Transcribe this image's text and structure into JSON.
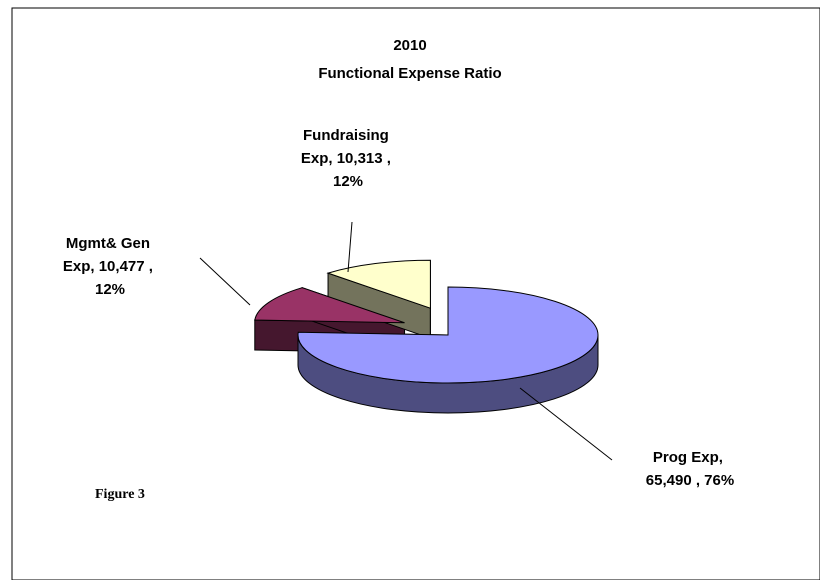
{
  "chart_data": {
    "type": "pie",
    "title": "2010",
    "subtitle": "Functional Expense Ratio",
    "categories": [
      "Prog Exp",
      "Mgmt& Gen Exp",
      "Fundraising Exp"
    ],
    "values": [
      65490,
      10477,
      10313
    ],
    "value_labels": [
      "Prog Exp, 65,490 , 76%",
      "Mgmt& Gen Exp, 10,477 , 12%",
      "Fundraising Exp, 10,313 , 12%"
    ],
    "colors": [
      "#9999ff",
      "#993366",
      "#ffffcc"
    ],
    "caption": "Figure 3"
  }
}
